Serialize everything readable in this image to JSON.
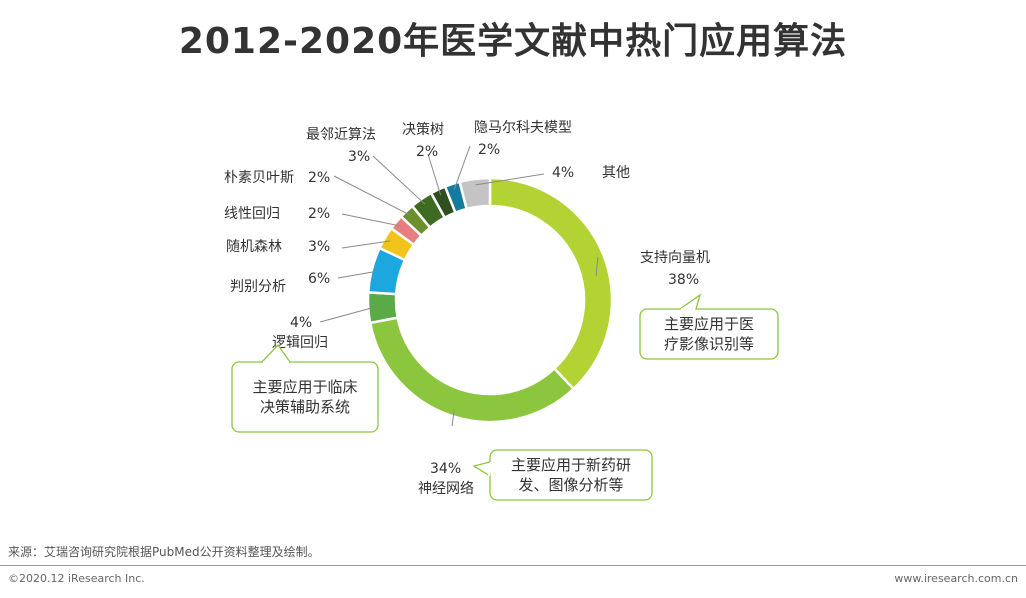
{
  "title": "2012-2020年医学文献中热门应用算法",
  "chart_data": {
    "type": "pie",
    "title": "2012-2020年医学文献中热门应用算法",
    "slices": [
      {
        "name": "支持向量机",
        "value": 38,
        "label": "38%",
        "color": "#b3d233"
      },
      {
        "name": "神经网络",
        "value": 34,
        "label": "34%",
        "color": "#8cc63f"
      },
      {
        "name": "逻辑回归",
        "value": 4,
        "label": "4%",
        "color": "#5aaa46"
      },
      {
        "name": "判别分析",
        "value": 6,
        "label": "6%",
        "color": "#1ca7de"
      },
      {
        "name": "随机森林",
        "value": 3,
        "label": "3%",
        "color": "#f2c31a"
      },
      {
        "name": "线性回归",
        "value": 2,
        "label": "2%",
        "color": "#e87e7e"
      },
      {
        "name": "朴素贝叶斯",
        "value": 2,
        "label": "2%",
        "color": "#6a8f2c"
      },
      {
        "name": "最邻近算法",
        "value": 3,
        "label": "3%",
        "color": "#3e6b21"
      },
      {
        "name": "决策树",
        "value": 2,
        "label": "2%",
        "color": "#2f4f1f"
      },
      {
        "name": "隐马尔科夫模型",
        "value": 2,
        "label": "2%",
        "color": "#147a9e"
      },
      {
        "name": "其他",
        "value": 4,
        "label": "4%",
        "color": "#c4c4c4"
      }
    ],
    "callouts": [
      {
        "slice": "支持向量机",
        "text": [
          "主要应用于医",
          "疗影像识别等"
        ]
      },
      {
        "slice": "神经网络",
        "text": [
          "主要应用于新药研",
          "发、图像分析等"
        ]
      },
      {
        "slice": "逻辑回归",
        "text": [
          "主要应用于临床",
          "决策辅助系统"
        ]
      }
    ]
  },
  "footer": {
    "source": "来源：艾瑞咨询研究院根据PubMed公开资料整理及绘制。",
    "copyright": "©2020.12 iResearch Inc.",
    "website": "www.iresearch.com.cn"
  }
}
